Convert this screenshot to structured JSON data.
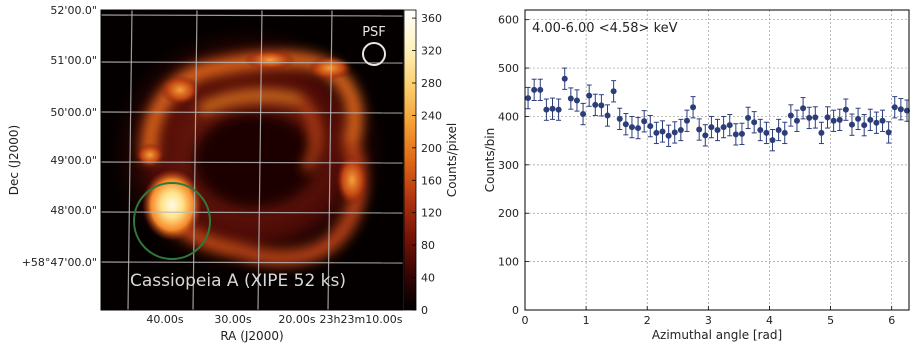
{
  "left_panel": {
    "image_label": "Cassiopeia A (XIPE 52 ks)",
    "psf_label": "PSF",
    "xlabel": "RA (J2000)",
    "ylabel": "Dec (J2000)",
    "ra_ticks": [
      "40.00s",
      "30.00s",
      "20.00s",
      "23h23m10.00s"
    ],
    "dec_ticks": [
      "52'00.0\"",
      "51'00.0\"",
      "50'00.0\"",
      "49'00.0\"",
      "48'00.0\"",
      "+58°47'00.0\""
    ],
    "colorbar": {
      "label": "Counts/pixel",
      "ticks": [
        0,
        40,
        80,
        120,
        160,
        200,
        240,
        280,
        320,
        360
      ],
      "range": [
        0,
        370
      ],
      "colormap": [
        "#000000",
        "#3a0505",
        "#7a1508",
        "#b23510",
        "#e06a16",
        "#f5a135",
        "#fbd070",
        "#fff2c0",
        "#ffffff"
      ]
    },
    "colors": {
      "grid": "#b8b8b8",
      "region_circle": "#2f7a3a",
      "psf_circle": "#e8e8e8"
    }
  },
  "chart_data": [
    {
      "type": "scatter",
      "annotation": "4.00-6.00 <4.58> keV",
      "xlabel": "Azimuthal angle [rad]",
      "ylabel": "Counts/bin",
      "xlim": [
        0,
        6.2832
      ],
      "ylim": [
        0,
        620
      ],
      "xticks": [
        0,
        1,
        2,
        3,
        4,
        5,
        6
      ],
      "yticks": [
        0,
        100,
        200,
        300,
        400,
        500,
        600
      ],
      "grid": true,
      "marker_color": "#2c3e7a",
      "series": [
        {
          "x": [
            0.05,
            0.15,
            0.25,
            0.35,
            0.45,
            0.55,
            0.65,
            0.75,
            0.85,
            0.95,
            1.05,
            1.15,
            1.25,
            1.35,
            1.45,
            1.55,
            1.65,
            1.75,
            1.85,
            1.95,
            2.05,
            2.15,
            2.25,
            2.35,
            2.45,
            2.55,
            2.65,
            2.75,
            2.85,
            2.95,
            3.05,
            3.15,
            3.25,
            3.35,
            3.45,
            3.55,
            3.65,
            3.75,
            3.85,
            3.95,
            4.05,
            4.15,
            4.25,
            4.35,
            4.45,
            4.55,
            4.65,
            4.75,
            4.85,
            4.95,
            5.05,
            5.15,
            5.25,
            5.35,
            5.45,
            5.55,
            5.65,
            5.75,
            5.85,
            5.95,
            6.05,
            6.15,
            6.25
          ],
          "y": [
            438,
            455,
            455,
            414,
            416,
            414,
            478,
            437,
            433,
            405,
            443,
            424,
            423,
            402,
            452,
            395,
            384,
            378,
            376,
            390,
            380,
            366,
            369,
            360,
            367,
            372,
            391,
            419,
            373,
            361,
            378,
            372,
            378,
            382,
            363,
            364,
            397,
            388,
            372,
            366,
            351,
            372,
            366,
            402,
            391,
            417,
            397,
            398,
            366,
            398,
            391,
            393,
            414,
            383,
            395,
            382,
            393,
            387,
            391,
            367,
            419,
            415,
            412
          ],
          "yerr": 22
        }
      ]
    }
  ]
}
